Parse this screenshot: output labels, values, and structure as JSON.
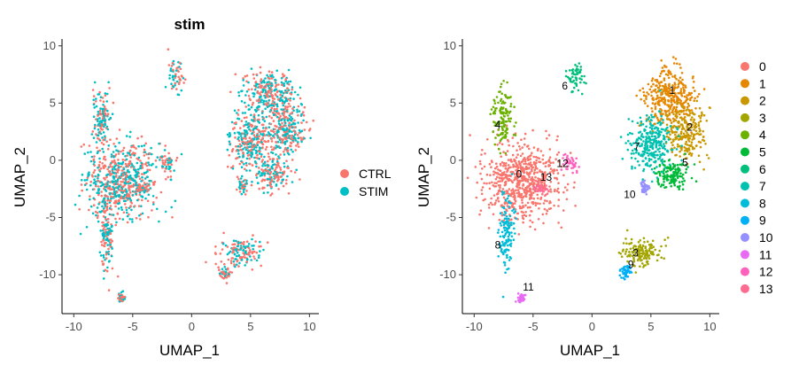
{
  "chart_data": [
    {
      "type": "scatter",
      "title": "stim",
      "xlabel": "UMAP_1",
      "ylabel": "UMAP_2",
      "xlim": [
        -11,
        10.8
      ],
      "ylim": [
        -13.4,
        10.6
      ],
      "xticks": [
        -10,
        -5,
        0,
        5,
        10
      ],
      "yticks": [
        10,
        5,
        0,
        -5,
        -10
      ],
      "grid": false,
      "legend_position": "right",
      "legend": [
        {
          "name": "CTRL",
          "color": "#F8766D"
        },
        {
          "name": "STIM",
          "color": "#00BFC4"
        }
      ],
      "clusters": [
        {
          "id": "0",
          "cx": -6,
          "cy": -1.8,
          "sx": 1.6,
          "sy": 1.6
        },
        {
          "id": "1",
          "cx": 6.6,
          "cy": 5.5,
          "sx": 1.1,
          "sy": 1.2
        },
        {
          "id": "2",
          "cx": 8.0,
          "cy": 2.4,
          "sx": 0.8,
          "sy": 1.1
        },
        {
          "id": "3",
          "cx": 4.2,
          "cy": -8.0,
          "sx": 0.9,
          "sy": 0.6
        },
        {
          "id": "4",
          "cx": -7.6,
          "cy": 3.8,
          "sx": 0.4,
          "sy": 1.2
        },
        {
          "id": "5",
          "cx": 6.8,
          "cy": -1.2,
          "sx": 0.8,
          "sy": 0.7
        },
        {
          "id": "6",
          "cx": -1.4,
          "cy": 7.2,
          "sx": 0.3,
          "sy": 0.7
        },
        {
          "id": "7",
          "cx": 5.0,
          "cy": 1.5,
          "sx": 0.9,
          "sy": 1.2
        },
        {
          "id": "8",
          "cx": -7.2,
          "cy": -6.5,
          "sx": 0.3,
          "sy": 1.6
        },
        {
          "id": "9",
          "cx": 2.8,
          "cy": -9.8,
          "sx": 0.3,
          "sy": 0.3
        },
        {
          "id": "10",
          "cx": 4.4,
          "cy": -2.3,
          "sx": 0.2,
          "sy": 0.3
        },
        {
          "id": "11",
          "cx": -6.0,
          "cy": -12.0,
          "sx": 0.15,
          "sy": 0.2
        },
        {
          "id": "12",
          "cx": -2.0,
          "cy": -0.1,
          "sx": 0.4,
          "sy": 0.4
        },
        {
          "id": "13",
          "cx": -4.3,
          "cy": -2.5,
          "sx": 0.3,
          "sy": 0.2
        }
      ]
    },
    {
      "type": "scatter",
      "title": "",
      "xlabel": "UMAP_1",
      "ylabel": "UMAP_2",
      "xlim": [
        -11,
        10.8
      ],
      "ylim": [
        -13.4,
        10.6
      ],
      "xticks": [
        -10,
        -5,
        0,
        5,
        10
      ],
      "yticks": [
        10,
        5,
        0,
        -5,
        -10
      ],
      "grid": false,
      "legend_position": "right",
      "legend": [
        {
          "name": "0",
          "color": "#F8766D"
        },
        {
          "name": "1",
          "color": "#E58700"
        },
        {
          "name": "2",
          "color": "#C99800"
        },
        {
          "name": "3",
          "color": "#A3A500"
        },
        {
          "name": "4",
          "color": "#6BB100"
        },
        {
          "name": "5",
          "color": "#00BA38"
        },
        {
          "name": "6",
          "color": "#00BF7D"
        },
        {
          "name": "7",
          "color": "#00C0AF"
        },
        {
          "name": "8",
          "color": "#00BCD8"
        },
        {
          "name": "9",
          "color": "#00B0F6"
        },
        {
          "name": "10",
          "color": "#9590FF"
        },
        {
          "name": "11",
          "color": "#E76BF3"
        },
        {
          "name": "12",
          "color": "#FF62BC"
        },
        {
          "name": "13",
          "color": "#FF6C91"
        }
      ],
      "cluster_labels": [
        {
          "text": "0",
          "x": -6.2,
          "y": -1.5
        },
        {
          "text": "1",
          "x": 6.8,
          "y": 5.8
        },
        {
          "text": "2",
          "x": 8.3,
          "y": 2.6
        },
        {
          "text": "3",
          "x": 3.7,
          "y": -8.4
        },
        {
          "text": "4",
          "x": -8.0,
          "y": 2.8
        },
        {
          "text": "5",
          "x": 7.9,
          "y": -0.5
        },
        {
          "text": "6",
          "x": -2.3,
          "y": 6.2
        },
        {
          "text": "7",
          "x": 3.8,
          "y": 0.9
        },
        {
          "text": "8",
          "x": -8.0,
          "y": -7.7
        },
        {
          "text": "9",
          "x": 3.3,
          "y": -9.4
        },
        {
          "text": "10",
          "x": 3.2,
          "y": -3.3
        },
        {
          "text": "11",
          "x": -5.4,
          "y": -11.4
        },
        {
          "text": "12",
          "x": -2.5,
          "y": -0.6
        },
        {
          "text": "13",
          "x": -3.9,
          "y": -1.8
        }
      ]
    }
  ]
}
